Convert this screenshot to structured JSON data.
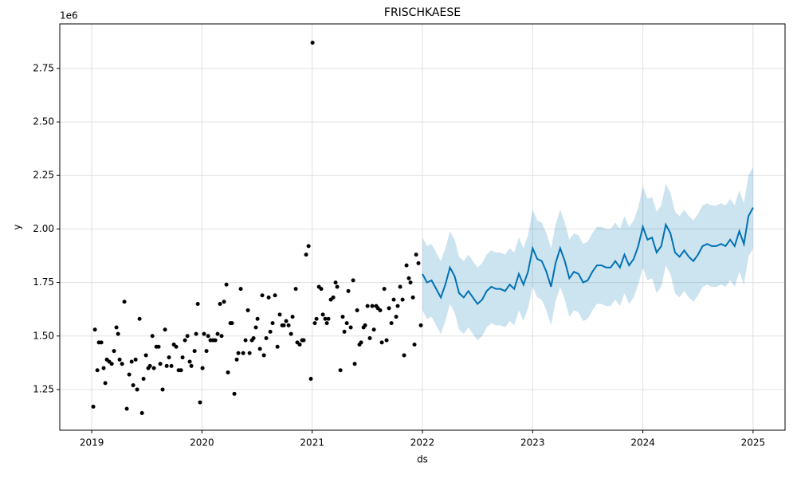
{
  "chart_data": {
    "type": "forecast",
    "title": "FRISCHKAESE",
    "x_label": "ds",
    "y_label": "y",
    "y_offset_label": "1e6",
    "xlim": [
      2018.71,
      2025.29
    ],
    "ylim": [
      1.06,
      2.958
    ],
    "xticks": [
      2019,
      2020,
      2021,
      2022,
      2023,
      2024,
      2025
    ],
    "yticks": [
      1.25,
      {
        "value": 1.5,
        "label": "1.50"
      },
      1.75,
      {
        "value": 2.0,
        "label": "2.00"
      },
      2.25,
      {
        "value": 2.5,
        "label": "2.50"
      },
      2.75
    ],
    "grid": true,
    "series": [
      {
        "type": "scatter",
        "color": "#000000",
        "x": [
          2019.014,
          2019.029,
          2019.051,
          2019.065,
          2019.087,
          2019.108,
          2019.123,
          2019.137,
          2019.159,
          2019.181,
          2019.202,
          2019.224,
          2019.239,
          2019.253,
          2019.275,
          2019.296,
          2019.318,
          2019.34,
          2019.362,
          2019.376,
          2019.398,
          2019.412,
          2019.434,
          2019.456,
          2019.47,
          2019.492,
          2019.513,
          2019.528,
          2019.55,
          2019.564,
          2019.586,
          2019.607,
          2019.622,
          2019.643,
          2019.665,
          2019.68,
          2019.701,
          2019.723,
          2019.745,
          2019.766,
          2019.788,
          2019.81,
          2019.824,
          2019.846,
          2019.868,
          2019.889,
          2019.904,
          2019.933,
          2019.947,
          2019.962,
          2019.983,
          2020.005,
          2020.019,
          2020.041,
          2020.056,
          2020.077,
          2020.099,
          2020.121,
          2020.142,
          2020.164,
          2020.178,
          2020.2,
          2020.222,
          2020.236,
          2020.258,
          2020.272,
          2020.294,
          2020.316,
          2020.33,
          2020.352,
          2020.374,
          2020.395,
          2020.417,
          2020.432,
          2020.453,
          2020.468,
          2020.489,
          2020.504,
          2020.526,
          2020.547,
          2020.562,
          2020.583,
          2020.605,
          2020.62,
          2020.641,
          2020.663,
          2020.685,
          2020.706,
          2020.728,
          2020.742,
          2020.764,
          2020.786,
          2020.808,
          2020.822,
          2020.851,
          2020.865,
          2020.887,
          2020.909,
          2020.923,
          2020.945,
          2020.967,
          2020.988,
          2021.003,
          2021.024,
          2021.039,
          2021.061,
          2021.082,
          2021.097,
          2021.118,
          2021.133,
          2021.147,
          2021.169,
          2021.191,
          2021.212,
          2021.227,
          2021.256,
          2021.277,
          2021.292,
          2021.314,
          2021.328,
          2021.35,
          2021.372,
          2021.386,
          2021.408,
          2021.429,
          2021.444,
          2021.466,
          2021.48,
          2021.502,
          2021.523,
          2021.545,
          2021.56,
          2021.581,
          2021.596,
          2021.617,
          2021.632,
          2021.654,
          2021.675,
          2021.697,
          2021.719,
          2021.74,
          2021.762,
          2021.776,
          2021.798,
          2021.82,
          2021.834,
          2021.856,
          2021.877,
          2021.892,
          2021.914,
          2021.928,
          2021.943,
          2021.964,
          2021.986
        ],
        "values": [
          1.17,
          1.53,
          1.34,
          1.47,
          1.47,
          1.35,
          1.28,
          1.39,
          1.38,
          1.37,
          1.43,
          1.54,
          1.51,
          1.39,
          1.37,
          1.66,
          1.16,
          1.32,
          1.38,
          1.27,
          1.39,
          1.25,
          1.58,
          1.14,
          1.3,
          1.41,
          1.35,
          1.36,
          1.5,
          1.35,
          1.45,
          1.45,
          1.37,
          1.25,
          1.53,
          1.36,
          1.4,
          1.36,
          1.46,
          1.45,
          1.34,
          1.34,
          1.4,
          1.48,
          1.5,
          1.38,
          1.36,
          1.43,
          1.51,
          1.65,
          1.19,
          1.35,
          1.51,
          1.43,
          1.5,
          1.48,
          1.48,
          1.48,
          1.51,
          1.65,
          1.5,
          1.66,
          1.74,
          1.33,
          1.56,
          1.56,
          1.23,
          1.39,
          1.42,
          1.72,
          1.42,
          1.48,
          1.62,
          1.42,
          1.48,
          1.49,
          1.54,
          1.58,
          1.44,
          1.69,
          1.41,
          1.49,
          1.68,
          1.52,
          1.56,
          1.69,
          1.45,
          1.6,
          1.55,
          1.55,
          1.57,
          1.55,
          1.51,
          1.59,
          1.72,
          1.47,
          1.46,
          1.48,
          1.48,
          1.88,
          1.92,
          1.3,
          2.87,
          1.56,
          1.58,
          1.73,
          1.72,
          1.6,
          1.58,
          1.56,
          1.58,
          1.67,
          1.68,
          1.75,
          1.73,
          1.34,
          1.59,
          1.52,
          1.56,
          1.71,
          1.54,
          1.76,
          1.37,
          1.62,
          1.46,
          1.47,
          1.54,
          1.55,
          1.64,
          1.49,
          1.64,
          1.53,
          1.64,
          1.63,
          1.62,
          1.47,
          1.72,
          1.48,
          1.63,
          1.56,
          1.67,
          1.59,
          1.64,
          1.73,
          1.67,
          1.41,
          1.83,
          1.77,
          1.75,
          1.68,
          1.46,
          1.88,
          1.84,
          1.55
        ]
      },
      {
        "type": "band",
        "color": "#0072B2",
        "x": [
          2022.0,
          2022.042,
          2022.083,
          2022.125,
          2022.167,
          2022.208,
          2022.25,
          2022.292,
          2022.333,
          2022.375,
          2022.417,
          2022.458,
          2022.5,
          2022.542,
          2022.583,
          2022.625,
          2022.667,
          2022.708,
          2022.75,
          2022.792,
          2022.833,
          2022.875,
          2022.917,
          2022.958,
          2023.0,
          2023.042,
          2023.083,
          2023.125,
          2023.167,
          2023.208,
          2023.25,
          2023.292,
          2023.333,
          2023.375,
          2023.417,
          2023.458,
          2023.5,
          2023.542,
          2023.583,
          2023.625,
          2023.667,
          2023.708,
          2023.75,
          2023.792,
          2023.833,
          2023.875,
          2023.917,
          2023.958,
          2024.0,
          2024.042,
          2024.083,
          2024.125,
          2024.167,
          2024.208,
          2024.25,
          2024.292,
          2024.333,
          2024.375,
          2024.417,
          2024.458,
          2024.5,
          2024.542,
          2024.583,
          2024.625,
          2024.667,
          2024.708,
          2024.75,
          2024.792,
          2024.833,
          2024.875,
          2024.917,
          2024.958,
          2025.0
        ],
        "upper": [
          1.96,
          1.92,
          1.93,
          1.89,
          1.85,
          1.91,
          1.99,
          1.95,
          1.87,
          1.85,
          1.88,
          1.85,
          1.82,
          1.84,
          1.88,
          1.9,
          1.89,
          1.89,
          1.88,
          1.91,
          1.89,
          1.96,
          1.91,
          1.97,
          2.09,
          2.04,
          2.03,
          1.98,
          1.91,
          2.02,
          2.09,
          2.03,
          1.95,
          1.98,
          1.97,
          1.93,
          1.94,
          1.98,
          2.01,
          2.01,
          2.0,
          2.0,
          2.03,
          2.0,
          2.06,
          2.01,
          2.04,
          2.1,
          2.2,
          2.14,
          2.15,
          2.08,
          2.11,
          2.21,
          2.17,
          2.08,
          2.06,
          2.09,
          2.06,
          2.04,
          2.07,
          2.11,
          2.12,
          2.11,
          2.11,
          2.12,
          2.11,
          2.14,
          2.11,
          2.18,
          2.12,
          2.25,
          2.29
        ],
        "lower": [
          1.62,
          1.58,
          1.59,
          1.55,
          1.51,
          1.57,
          1.65,
          1.61,
          1.53,
          1.51,
          1.54,
          1.51,
          1.48,
          1.5,
          1.54,
          1.56,
          1.55,
          1.55,
          1.54,
          1.57,
          1.55,
          1.62,
          1.57,
          1.63,
          1.73,
          1.68,
          1.67,
          1.62,
          1.55,
          1.66,
          1.73,
          1.67,
          1.59,
          1.62,
          1.61,
          1.57,
          1.58,
          1.62,
          1.65,
          1.65,
          1.64,
          1.64,
          1.67,
          1.64,
          1.7,
          1.65,
          1.68,
          1.74,
          1.82,
          1.76,
          1.77,
          1.7,
          1.73,
          1.83,
          1.79,
          1.7,
          1.68,
          1.71,
          1.68,
          1.66,
          1.69,
          1.73,
          1.74,
          1.73,
          1.73,
          1.74,
          1.73,
          1.76,
          1.73,
          1.8,
          1.74,
          1.87,
          1.91
        ]
      },
      {
        "type": "line",
        "color": "#0072B2",
        "x": [
          2022.0,
          2022.042,
          2022.083,
          2022.125,
          2022.167,
          2022.208,
          2022.25,
          2022.292,
          2022.333,
          2022.375,
          2022.417,
          2022.458,
          2022.5,
          2022.542,
          2022.583,
          2022.625,
          2022.667,
          2022.708,
          2022.75,
          2022.792,
          2022.833,
          2022.875,
          2022.917,
          2022.958,
          2023.0,
          2023.042,
          2023.083,
          2023.125,
          2023.167,
          2023.208,
          2023.25,
          2023.292,
          2023.333,
          2023.375,
          2023.417,
          2023.458,
          2023.5,
          2023.542,
          2023.583,
          2023.625,
          2023.667,
          2023.708,
          2023.75,
          2023.792,
          2023.833,
          2023.875,
          2023.917,
          2023.958,
          2024.0,
          2024.042,
          2024.083,
          2024.125,
          2024.167,
          2024.208,
          2024.25,
          2024.292,
          2024.333,
          2024.375,
          2024.417,
          2024.458,
          2024.5,
          2024.542,
          2024.583,
          2024.625,
          2024.667,
          2024.708,
          2024.75,
          2024.792,
          2024.833,
          2024.875,
          2024.917,
          2024.958,
          2025.0
        ],
        "values": [
          1.79,
          1.75,
          1.76,
          1.72,
          1.68,
          1.74,
          1.82,
          1.78,
          1.7,
          1.68,
          1.71,
          1.68,
          1.65,
          1.67,
          1.71,
          1.73,
          1.72,
          1.72,
          1.71,
          1.74,
          1.72,
          1.79,
          1.74,
          1.8,
          1.91,
          1.86,
          1.85,
          1.8,
          1.73,
          1.84,
          1.91,
          1.85,
          1.77,
          1.8,
          1.79,
          1.75,
          1.76,
          1.8,
          1.83,
          1.83,
          1.82,
          1.82,
          1.85,
          1.82,
          1.88,
          1.83,
          1.86,
          1.92,
          2.01,
          1.95,
          1.96,
          1.89,
          1.92,
          2.02,
          1.98,
          1.89,
          1.87,
          1.9,
          1.87,
          1.85,
          1.88,
          1.92,
          1.93,
          1.92,
          1.92,
          1.93,
          1.92,
          1.95,
          1.92,
          1.99,
          1.93,
          2.06,
          2.1
        ]
      }
    ]
  }
}
